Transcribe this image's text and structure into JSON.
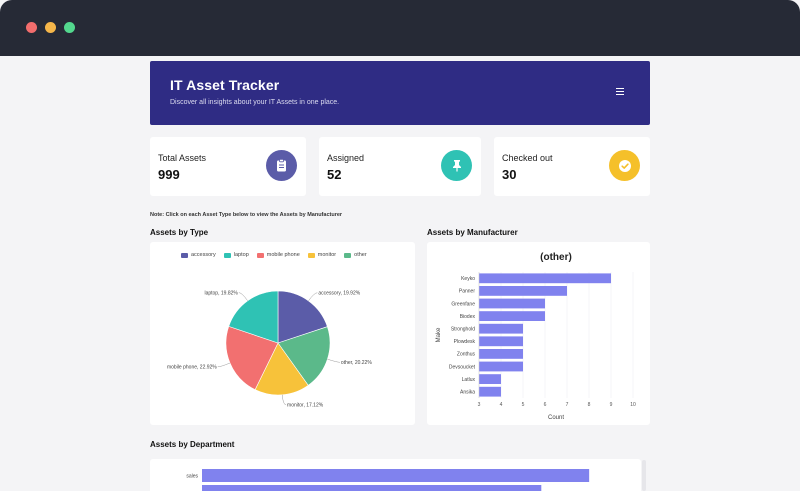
{
  "header": {
    "title": "IT Asset Tracker",
    "subtitle": "Discover all insights about your IT Assets in one place."
  },
  "cards": [
    {
      "label": "Total Assets",
      "value": "999",
      "icon": "clipboard-icon",
      "color": "#5b5ca8"
    },
    {
      "label": "Assigned",
      "value": "52",
      "icon": "pin-icon",
      "color": "#2fc2b4"
    },
    {
      "label": "Checked out",
      "value": "30",
      "icon": "check-icon",
      "color": "#f5c02a"
    }
  ],
  "note": "Note: Click on each Asset Type below to view the Assets by Manufacturer",
  "sections": {
    "type": "Assets by Type",
    "manufacturer": "Assets by Manufacturer",
    "department": "Assets by Department"
  },
  "chart_data": [
    {
      "type": "pie",
      "title": "Assets by Type",
      "legend": [
        "accessory",
        "laptop",
        "mobile phone",
        "monitor",
        "other"
      ],
      "categories": [
        "accessory",
        "other",
        "monitor",
        "mobile phone",
        "laptop"
      ],
      "values": [
        19.92,
        20.22,
        17.12,
        22.92,
        19.82
      ],
      "labels": [
        "accessory, 19.92%",
        "other, 20.22%",
        "monitor, 17.12%",
        "mobile phone, 22.92%",
        "laptop, 19.82%"
      ],
      "colors": {
        "accessory": "#5b5ca8",
        "laptop": "#2fc2b4",
        "mobile phone": "#f27070",
        "monitor": "#f7c23a",
        "other": "#5bb98a"
      },
      "legend_position": "top"
    },
    {
      "type": "bar",
      "orientation": "horizontal",
      "title": "(other)",
      "categories": [
        "Keyko",
        "Panner",
        "Greenfane",
        "Biodex",
        "Stronghold",
        "Plowdesk",
        "Zonthus",
        "Devsoucket",
        "Latlux",
        "Ansika"
      ],
      "values": [
        9,
        7,
        6,
        6,
        5,
        5,
        5,
        5,
        4,
        4
      ],
      "xlabel": "Count",
      "ylabel": "Make",
      "xlim": [
        3,
        10
      ],
      "xticks": [
        "3",
        "4",
        "5",
        "6",
        "7",
        "8",
        "9",
        "10"
      ],
      "color": "#8082ee"
    },
    {
      "type": "bar",
      "orientation": "horizontal",
      "title": "Assets by Department",
      "categories": [
        "sales",
        ""
      ],
      "values": [
        178,
        156
      ],
      "xlim": [
        0,
        200
      ],
      "color": "#8082ee"
    }
  ]
}
